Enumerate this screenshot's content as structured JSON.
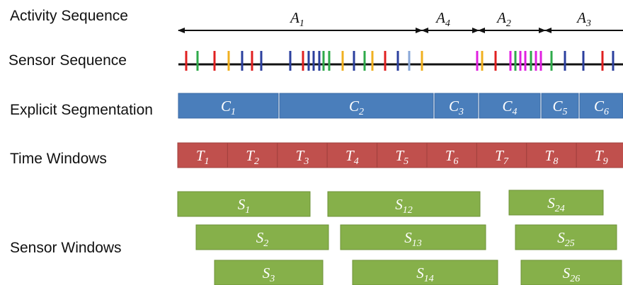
{
  "rows": {
    "activity_sequence": "Activity Sequence",
    "sensor_sequence": "Sensor Sequence",
    "explicit_segmentation": "Explicit Segmentation",
    "time_windows": "Time Windows",
    "sensor_windows": "Sensor Windows"
  },
  "activities": [
    {
      "base": "A",
      "sub": "1"
    },
    {
      "base": "A",
      "sub": "4"
    },
    {
      "base": "A",
      "sub": "2"
    },
    {
      "base": "A",
      "sub": "3"
    }
  ],
  "explicit_segments": [
    {
      "base": "C",
      "sub": "1"
    },
    {
      "base": "C",
      "sub": "2"
    },
    {
      "base": "C",
      "sub": "3"
    },
    {
      "base": "C",
      "sub": "4"
    },
    {
      "base": "C",
      "sub": "5"
    },
    {
      "base": "C",
      "sub": "6"
    }
  ],
  "time_windows": [
    {
      "base": "T",
      "sub": "1"
    },
    {
      "base": "T",
      "sub": "2"
    },
    {
      "base": "T",
      "sub": "3"
    },
    {
      "base": "T",
      "sub": "4"
    },
    {
      "base": "T",
      "sub": "5"
    },
    {
      "base": "T",
      "sub": "6"
    },
    {
      "base": "T",
      "sub": "7"
    },
    {
      "base": "T",
      "sub": "8"
    },
    {
      "base": "T",
      "sub": "9"
    }
  ],
  "sensor_windows": [
    {
      "base": "S",
      "sub": "1"
    },
    {
      "base": "S",
      "sub": "2"
    },
    {
      "base": "S",
      "sub": "3"
    },
    {
      "base": "S",
      "sub": "12"
    },
    {
      "base": "S",
      "sub": "13"
    },
    {
      "base": "S",
      "sub": "14"
    },
    {
      "base": "S",
      "sub": "24"
    },
    {
      "base": "S",
      "sub": "25"
    },
    {
      "base": "S",
      "sub": "26"
    }
  ],
  "colors": {
    "explicit_segmentation": "#4a7ebb",
    "time_windows": "#c0504d",
    "sensor_windows": "#86b04a",
    "sensor_red": "#e02020",
    "sensor_green": "#2eaa4a",
    "sensor_blue": "#2b3f9e",
    "sensor_yellow": "#f0b020",
    "sensor_magenta": "#e020e0",
    "sensor_lightblue": "#8aa8d8"
  }
}
